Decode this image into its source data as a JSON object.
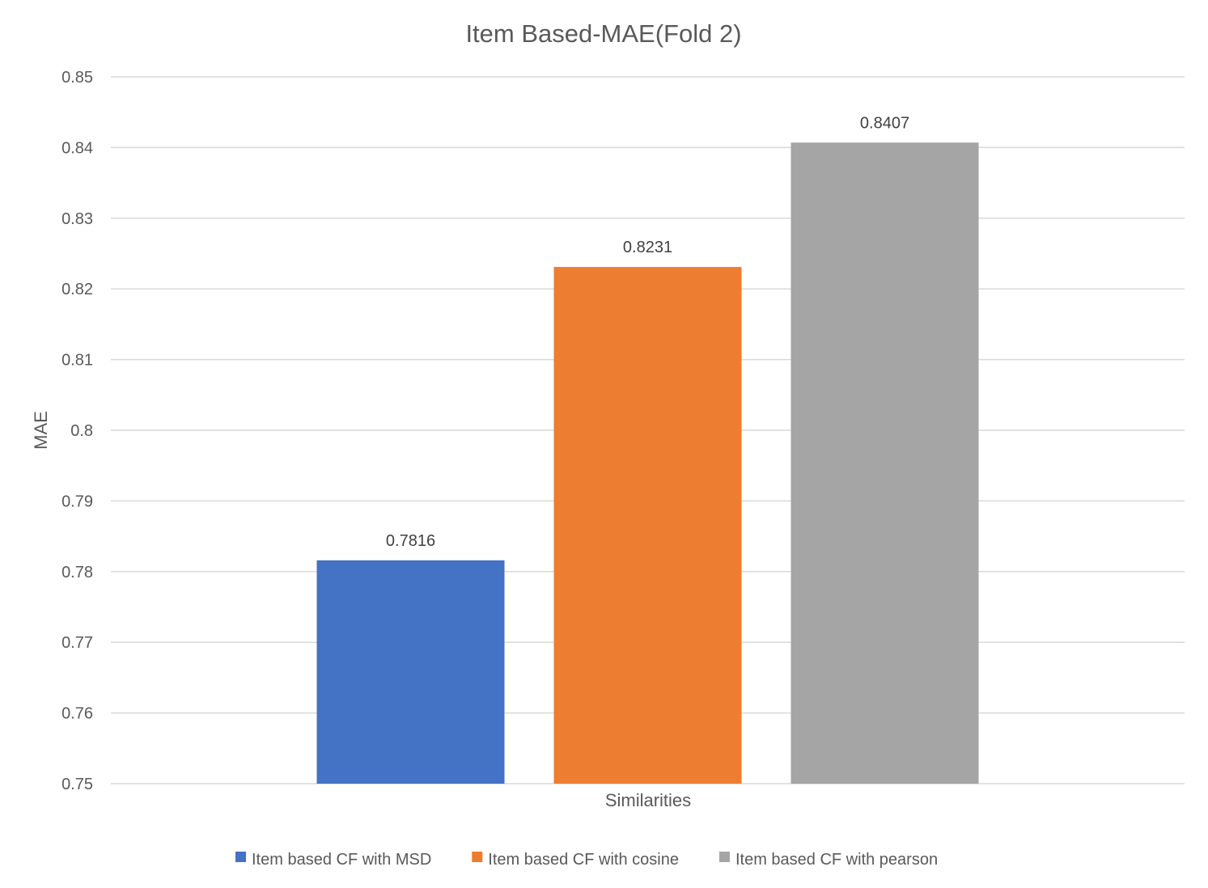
{
  "chart_data": {
    "type": "bar",
    "title": "Item Based-MAE(Fold 2)",
    "xlabel": "Similarities",
    "ylabel": "MAE",
    "ylim": [
      0.75,
      0.85
    ],
    "yticks": [
      "0.75",
      "0.76",
      "0.77",
      "0.78",
      "0.79",
      "0.8",
      "0.81",
      "0.82",
      "0.83",
      "0.84",
      "0.85"
    ],
    "grid": true,
    "legend_position": "bottom",
    "categories": [
      "Similarities"
    ],
    "series": [
      {
        "name": "Item based CF with MSD",
        "values": [
          0.7816
        ],
        "label": "0.7816",
        "color": "#4472c4"
      },
      {
        "name": "Item based CF with cosine",
        "values": [
          0.8231
        ],
        "label": "0.8231",
        "color": "#ed7d31"
      },
      {
        "name": "Item based CF with pearson",
        "values": [
          0.8407
        ],
        "label": "0.8407",
        "color": "#a5a5a5"
      }
    ]
  }
}
